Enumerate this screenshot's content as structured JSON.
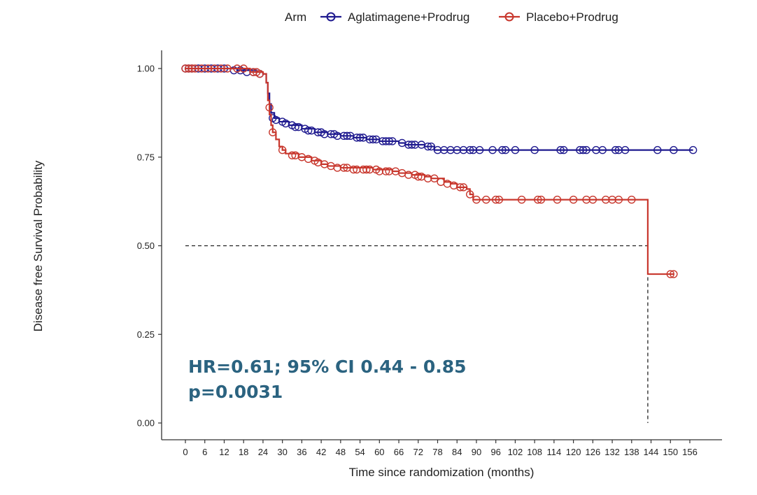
{
  "chart_data": {
    "type": "line",
    "subtype": "kaplan-meier",
    "xlabel": "Time since randomization (months)",
    "ylabel": "Disease free Survival Probability",
    "xlim": [
      -2,
      164
    ],
    "ylim": [
      -0.05,
      1.05
    ],
    "xticks": [
      0,
      6,
      12,
      18,
      24,
      30,
      36,
      42,
      48,
      54,
      60,
      66,
      72,
      78,
      84,
      90,
      96,
      102,
      108,
      114,
      120,
      126,
      132,
      138,
      144,
      150,
      156
    ],
    "yticks": [
      0.0,
      0.25,
      0.5,
      0.75,
      1.0
    ],
    "ytick_labels": [
      "0.00",
      "0.25",
      "0.50",
      "0.75",
      "1.00"
    ],
    "grid": false,
    "legend": {
      "title": "Arm",
      "position": "top"
    },
    "series": [
      {
        "name": "Aglatimagene+Prodrug",
        "color": "#1f1a8f",
        "steps": [
          [
            0,
            1.0
          ],
          [
            14,
            1.0
          ],
          [
            16,
            0.995
          ],
          [
            22,
            0.99
          ],
          [
            24,
            0.985
          ],
          [
            25,
            0.96
          ],
          [
            25.5,
            0.93
          ],
          [
            26,
            0.9
          ],
          [
            26.5,
            0.875
          ],
          [
            27.5,
            0.86
          ],
          [
            29,
            0.85
          ],
          [
            32,
            0.84
          ],
          [
            36,
            0.83
          ],
          [
            40,
            0.82
          ],
          [
            44,
            0.815
          ],
          [
            48,
            0.81
          ],
          [
            52,
            0.805
          ],
          [
            56,
            0.8
          ],
          [
            60,
            0.795
          ],
          [
            66,
            0.79
          ],
          [
            68,
            0.785
          ],
          [
            74,
            0.78
          ],
          [
            77,
            0.77
          ],
          [
            80,
            0.77
          ],
          [
            157,
            0.77
          ]
        ],
        "censored": [
          [
            0,
            1.0
          ],
          [
            1,
            1.0
          ],
          [
            2,
            1.0
          ],
          [
            4,
            1.0
          ],
          [
            6,
            1.0
          ],
          [
            8,
            1.0
          ],
          [
            10,
            1.0
          ],
          [
            12,
            1.0
          ],
          [
            15,
            0.995
          ],
          [
            17,
            0.995
          ],
          [
            19,
            0.99
          ],
          [
            21,
            0.99
          ],
          [
            23,
            0.985
          ],
          [
            27,
            0.86
          ],
          [
            28,
            0.855
          ],
          [
            30,
            0.85
          ],
          [
            31,
            0.845
          ],
          [
            33,
            0.84
          ],
          [
            34,
            0.835
          ],
          [
            35,
            0.835
          ],
          [
            37,
            0.83
          ],
          [
            38,
            0.825
          ],
          [
            39,
            0.825
          ],
          [
            41,
            0.82
          ],
          [
            42,
            0.82
          ],
          [
            43,
            0.815
          ],
          [
            45,
            0.815
          ],
          [
            46,
            0.815
          ],
          [
            47,
            0.81
          ],
          [
            49,
            0.81
          ],
          [
            50,
            0.81
          ],
          [
            51,
            0.81
          ],
          [
            53,
            0.805
          ],
          [
            54,
            0.805
          ],
          [
            55,
            0.805
          ],
          [
            57,
            0.8
          ],
          [
            58,
            0.8
          ],
          [
            59,
            0.8
          ],
          [
            61,
            0.795
          ],
          [
            62,
            0.795
          ],
          [
            63,
            0.795
          ],
          [
            64,
            0.795
          ],
          [
            67,
            0.79
          ],
          [
            69,
            0.785
          ],
          [
            70,
            0.785
          ],
          [
            71,
            0.785
          ],
          [
            73,
            0.785
          ],
          [
            75,
            0.78
          ],
          [
            76,
            0.78
          ],
          [
            78,
            0.77
          ],
          [
            80,
            0.77
          ],
          [
            82,
            0.77
          ],
          [
            84,
            0.77
          ],
          [
            86,
            0.77
          ],
          [
            88,
            0.77
          ],
          [
            89,
            0.77
          ],
          [
            91,
            0.77
          ],
          [
            95,
            0.77
          ],
          [
            98,
            0.77
          ],
          [
            99,
            0.77
          ],
          [
            102,
            0.77
          ],
          [
            108,
            0.77
          ],
          [
            116,
            0.77
          ],
          [
            117,
            0.77
          ],
          [
            122,
            0.77
          ],
          [
            123,
            0.77
          ],
          [
            124,
            0.77
          ],
          [
            127,
            0.77
          ],
          [
            129,
            0.77
          ],
          [
            133,
            0.77
          ],
          [
            134,
            0.77
          ],
          [
            136,
            0.77
          ],
          [
            146,
            0.77
          ],
          [
            151,
            0.77
          ],
          [
            157,
            0.77
          ]
        ]
      },
      {
        "name": "Placebo+Prodrug",
        "color": "#c8372d",
        "steps": [
          [
            0,
            1.0
          ],
          [
            20,
            1.0
          ],
          [
            20,
            0.99
          ],
          [
            24,
            0.985
          ],
          [
            25,
            0.96
          ],
          [
            25.5,
            0.91
          ],
          [
            26,
            0.87
          ],
          [
            26.5,
            0.84
          ],
          [
            27,
            0.82
          ],
          [
            28,
            0.8
          ],
          [
            29,
            0.78
          ],
          [
            30,
            0.77
          ],
          [
            31,
            0.76
          ],
          [
            35,
            0.75
          ],
          [
            39,
            0.74
          ],
          [
            42,
            0.73
          ],
          [
            44,
            0.725
          ],
          [
            48,
            0.72
          ],
          [
            58,
            0.715
          ],
          [
            64,
            0.71
          ],
          [
            66,
            0.705
          ],
          [
            70,
            0.7
          ],
          [
            74,
            0.695
          ],
          [
            76,
            0.69
          ],
          [
            80,
            0.68
          ],
          [
            82,
            0.675
          ],
          [
            84,
            0.665
          ],
          [
            87,
            0.66
          ],
          [
            88,
            0.645
          ],
          [
            89,
            0.63
          ],
          [
            143,
            0.63
          ],
          [
            143,
            0.42
          ],
          [
            151,
            0.42
          ]
        ],
        "censored": [
          [
            0,
            1.0
          ],
          [
            1,
            1.0
          ],
          [
            2,
            1.0
          ],
          [
            3,
            1.0
          ],
          [
            5,
            1.0
          ],
          [
            7,
            1.0
          ],
          [
            9,
            1.0
          ],
          [
            11,
            1.0
          ],
          [
            13,
            1.0
          ],
          [
            16,
            1.0
          ],
          [
            18,
            1.0
          ],
          [
            21,
            0.99
          ],
          [
            22,
            0.99
          ],
          [
            23,
            0.985
          ],
          [
            26,
            0.89
          ],
          [
            27,
            0.82
          ],
          [
            30,
            0.77
          ],
          [
            33,
            0.755
          ],
          [
            34,
            0.755
          ],
          [
            36,
            0.75
          ],
          [
            38,
            0.745
          ],
          [
            40,
            0.74
          ],
          [
            41,
            0.735
          ],
          [
            43,
            0.73
          ],
          [
            45,
            0.725
          ],
          [
            47,
            0.72
          ],
          [
            49,
            0.72
          ],
          [
            50,
            0.72
          ],
          [
            52,
            0.715
          ],
          [
            53,
            0.715
          ],
          [
            55,
            0.715
          ],
          [
            56,
            0.715
          ],
          [
            57,
            0.715
          ],
          [
            59,
            0.715
          ],
          [
            60,
            0.71
          ],
          [
            62,
            0.71
          ],
          [
            63,
            0.71
          ],
          [
            65,
            0.71
          ],
          [
            67,
            0.705
          ],
          [
            69,
            0.7
          ],
          [
            71,
            0.7
          ],
          [
            72,
            0.695
          ],
          [
            73,
            0.695
          ],
          [
            75,
            0.69
          ],
          [
            77,
            0.69
          ],
          [
            79,
            0.68
          ],
          [
            81,
            0.675
          ],
          [
            83,
            0.67
          ],
          [
            85,
            0.665
          ],
          [
            86,
            0.665
          ],
          [
            88,
            0.645
          ],
          [
            90,
            0.63
          ],
          [
            93,
            0.63
          ],
          [
            96,
            0.63
          ],
          [
            97,
            0.63
          ],
          [
            104,
            0.63
          ],
          [
            109,
            0.63
          ],
          [
            110,
            0.63
          ],
          [
            115,
            0.63
          ],
          [
            120,
            0.63
          ],
          [
            124,
            0.63
          ],
          [
            126,
            0.63
          ],
          [
            130,
            0.63
          ],
          [
            132,
            0.63
          ],
          [
            134,
            0.63
          ],
          [
            138,
            0.63
          ],
          [
            150,
            0.42
          ],
          [
            151,
            0.42
          ]
        ]
      }
    ],
    "reference_lines": [
      {
        "style": "dashed",
        "from": [
          0,
          0.5
        ],
        "to": [
          143,
          0.5
        ]
      },
      {
        "style": "dashed",
        "from": [
          143,
          0.5
        ],
        "to": [
          143,
          0.0
        ]
      }
    ],
    "annotations": [
      {
        "text": "HR=0.61; 95% CI 0.44 - 0.85",
        "color": "#2b6380"
      },
      {
        "text": "p=0.0031",
        "color": "#2b6380"
      }
    ]
  }
}
